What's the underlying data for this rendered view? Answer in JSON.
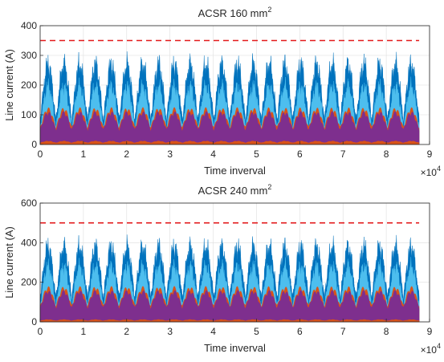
{
  "chart_data": [
    {
      "type": "area",
      "title_main": "ACSR 160 mm",
      "title_sup": "2",
      "xlabel": "Time inverval",
      "ylabel": "Line current (A)",
      "xlim": [
        0,
        9
      ],
      "ylim": [
        0,
        400
      ],
      "x_exponent_base": "×10",
      "x_exponent_power": "4",
      "x_ticks": [
        "0",
        "1",
        "2",
        "3",
        "4",
        "5",
        "6",
        "7",
        "8",
        "9"
      ],
      "y_ticks": [
        "0",
        "100",
        "200",
        "300",
        "400"
      ],
      "x_tick_values": [
        0,
        1,
        2,
        3,
        4,
        5,
        6,
        7,
        8,
        9
      ],
      "y_tick_values": [
        0,
        100,
        200,
        300,
        400
      ],
      "grid": true,
      "threshold": 350,
      "x_end": 8.76,
      "days": 24,
      "series": [
        {
          "peak": 320,
          "trough": 100,
          "color": "#0072BD"
        },
        {
          "peak": 230,
          "trough": 70,
          "color": "#4DBEEE"
        },
        {
          "peak": 125,
          "trough": 60,
          "color": "#D95319"
        },
        {
          "peak": 112,
          "trough": 52,
          "color": "#7E2F8E"
        },
        {
          "peak": 12,
          "trough": 6,
          "color": "#D95319"
        }
      ]
    },
    {
      "type": "area",
      "title_main": "ACSR 240 mm",
      "title_sup": "2",
      "xlabel": "Time inverval",
      "ylabel": "Line current (A)",
      "xlim": [
        0,
        9
      ],
      "ylim": [
        0,
        600
      ],
      "x_exponent_base": "×10",
      "x_exponent_power": "4",
      "x_ticks": [
        "0",
        "1",
        "2",
        "3",
        "4",
        "5",
        "6",
        "7",
        "8",
        "9"
      ],
      "y_ticks": [
        "0",
        "200",
        "400",
        "600"
      ],
      "x_tick_values": [
        0,
        1,
        2,
        3,
        4,
        5,
        6,
        7,
        8,
        9
      ],
      "y_tick_values": [
        0,
        200,
        400,
        600
      ],
      "grid": true,
      "threshold": 500,
      "x_end": 8.76,
      "days": 24,
      "series": [
        {
          "peak": 450,
          "trough": 150,
          "color": "#0072BD"
        },
        {
          "peak": 330,
          "trough": 100,
          "color": "#4DBEEE"
        },
        {
          "peak": 180,
          "trough": 85,
          "color": "#D95319"
        },
        {
          "peak": 160,
          "trough": 75,
          "color": "#7E2F8E"
        },
        {
          "peak": 12,
          "trough": 6,
          "color": "#D95319"
        }
      ]
    }
  ],
  "style": {
    "threshold_color": "#E31A1C",
    "axis_color": "#262626",
    "grid_color": "#DEDEDE"
  }
}
